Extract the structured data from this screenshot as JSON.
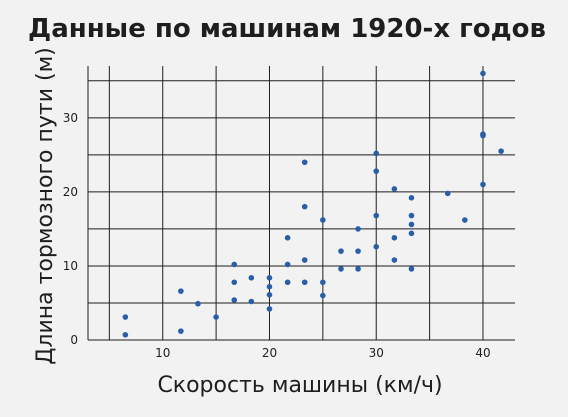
{
  "chart_data": {
    "type": "scatter",
    "title": "Данные по машинам 1920-х годов",
    "xlabel": "Скорость машины (км/ч)",
    "ylabel": "Длина тормозного пути (м)",
    "xlim": [
      3,
      43
    ],
    "ylim": [
      0,
      37
    ],
    "xticks": [
      10,
      20,
      30,
      40
    ],
    "yticks": [
      0,
      10,
      20,
      30
    ],
    "grid": true,
    "point_color": "#2a5ea6",
    "points": [
      [
        6.5,
        0.7
      ],
      [
        6.5,
        3.1
      ],
      [
        11.7,
        1.2
      ],
      [
        11.7,
        6.6
      ],
      [
        13.3,
        4.9
      ],
      [
        15,
        3.1
      ],
      [
        16.7,
        5.4
      ],
      [
        16.7,
        7.8
      ],
      [
        16.7,
        10.2
      ],
      [
        18.3,
        5.2
      ],
      [
        18.3,
        8.4
      ],
      [
        20,
        4.2
      ],
      [
        20,
        6.1
      ],
      [
        20,
        7.2
      ],
      [
        20,
        8.4
      ],
      [
        21.7,
        7.8
      ],
      [
        21.7,
        10.2
      ],
      [
        21.7,
        13.8
      ],
      [
        23.3,
        7.8
      ],
      [
        23.3,
        10.8
      ],
      [
        23.3,
        18
      ],
      [
        23.3,
        24
      ],
      [
        25,
        6
      ],
      [
        25,
        7.8
      ],
      [
        25,
        16.2
      ],
      [
        26.7,
        9.6
      ],
      [
        26.7,
        12
      ],
      [
        28.3,
        9.6
      ],
      [
        28.3,
        12
      ],
      [
        28.3,
        15
      ],
      [
        30,
        12.6
      ],
      [
        30,
        16.8
      ],
      [
        30,
        22.8
      ],
      [
        30,
        25.2
      ],
      [
        31.7,
        10.8
      ],
      [
        31.7,
        13.8
      ],
      [
        31.7,
        20.4
      ],
      [
        33.3,
        9.6
      ],
      [
        33.3,
        14.4
      ],
      [
        33.3,
        15.6
      ],
      [
        33.3,
        16.8
      ],
      [
        33.3,
        19.2
      ],
      [
        36.7,
        19.8
      ],
      [
        38.3,
        16.2
      ],
      [
        40,
        21
      ],
      [
        40,
        27.6
      ],
      [
        40,
        27.8
      ],
      [
        40,
        36
      ],
      [
        41.7,
        25.5
      ]
    ]
  }
}
